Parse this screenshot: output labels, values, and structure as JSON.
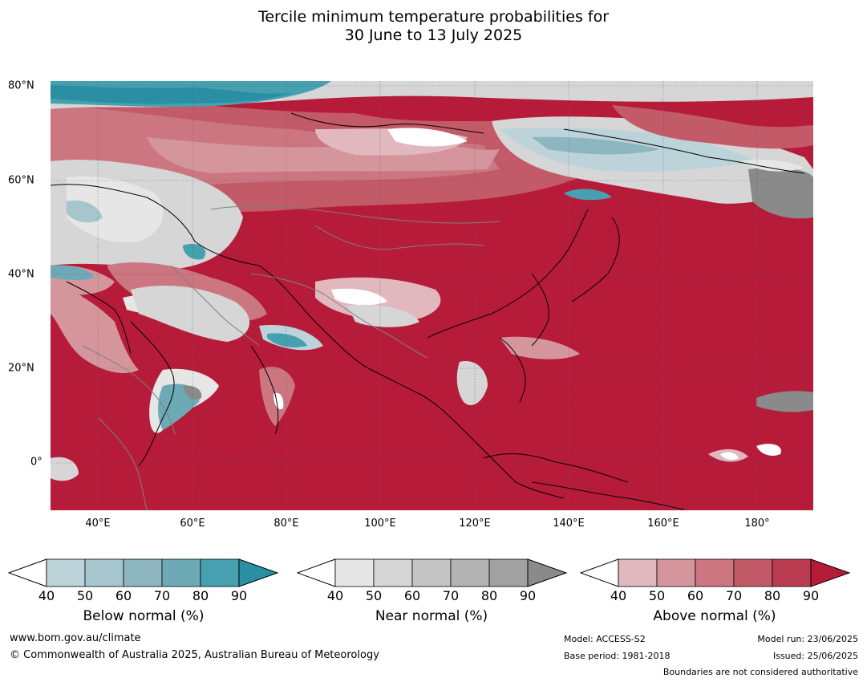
{
  "title": {
    "line1": "Tercile minimum temperature probabilities for",
    "line2": "30 June to 13 July 2025"
  },
  "map": {
    "lat_labels": [
      "80°N",
      "60°N",
      "40°N",
      "20°N",
      "0°"
    ],
    "lon_labels": [
      "40°E",
      "60°E",
      "80°E",
      "100°E",
      "120°E",
      "140°E",
      "160°E",
      "180°"
    ],
    "colors": {
      "above_dominant": "#b61c3a",
      "below_dominant": "#2a8fa3",
      "near_dominant": "#8a8a8a"
    }
  },
  "legends": [
    {
      "caption": "Below normal (%)",
      "ticks": [
        "40",
        "50",
        "60",
        "70",
        "80",
        "90"
      ],
      "colors": [
        "#bdd3da",
        "#a6c6cd",
        "#8db6c1",
        "#6eaab6",
        "#46a0b0",
        "#2a8fa3"
      ]
    },
    {
      "caption": "Near normal (%)",
      "ticks": [
        "40",
        "50",
        "60",
        "70",
        "80",
        "90"
      ],
      "colors": [
        "#e6e6e6",
        "#d6d6d6",
        "#c4c4c4",
        "#b3b3b3",
        "#a1a1a1",
        "#8a8a8a"
      ]
    },
    {
      "caption": "Above normal (%)",
      "ticks": [
        "40",
        "50",
        "60",
        "70",
        "80",
        "90"
      ],
      "colors": [
        "#e0b8be",
        "#d5959c",
        "#cb7680",
        "#c25a68",
        "#b93c50",
        "#b61c3a"
      ]
    }
  ],
  "footer": {
    "url": "www.bom.gov.au/climate",
    "copyright": "© Commonwealth of Australia 2025, Australian Bureau of Meteorology",
    "model": "Model: ACCESS-S2",
    "base_period": "Base period: 1981-2018",
    "model_run": "Model run: 23/06/2025",
    "issued": "Issued: 25/06/2025",
    "disclaimer": "Boundaries are not considered authoritative"
  }
}
